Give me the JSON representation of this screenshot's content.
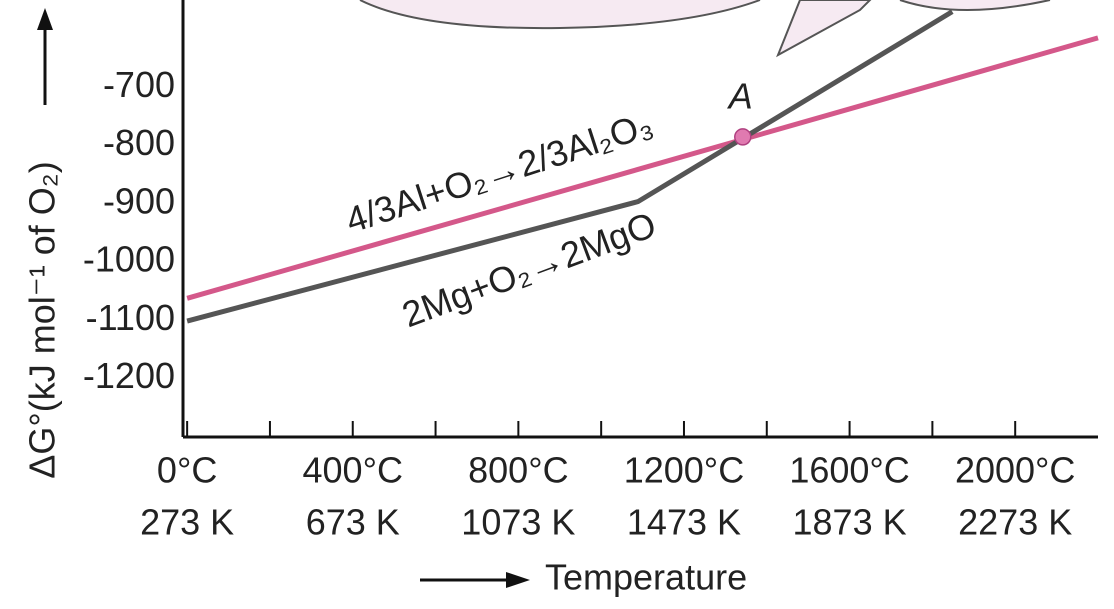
{
  "chart_data": {
    "type": "line",
    "xlabel": "Temperature",
    "ylabel": "ΔG°(kJ mol⁻¹ of O₂)",
    "xlim": [
      -10,
      2200
    ],
    "ylim": [
      -1300,
      -550
    ],
    "xticks": [
      {
        "value": 0,
        "label": "0°C"
      },
      {
        "value": 400,
        "label": "400°C"
      },
      {
        "value": 800,
        "label": "800°C"
      },
      {
        "value": 1200,
        "label": "1200°C"
      },
      {
        "value": 1600,
        "label": "1600°C"
      },
      {
        "value": 2000,
        "label": "2000°C"
      }
    ],
    "xtick_labels_kelvin": [
      "273 K",
      "673 K",
      "1073 K",
      "1473 K",
      "1873 K",
      "2273 K"
    ],
    "xminorticks": [
      200,
      600,
      1000,
      1400,
      1800
    ],
    "yticks": [
      -700,
      -800,
      -900,
      -1000,
      -1100,
      -1200
    ],
    "series": [
      {
        "name": "4/3Al+O₂→2/3Al₂O₃",
        "color": "#d4588a",
        "x": [
          0,
          2200
        ],
        "values": [
          -1062,
          -615
        ]
      },
      {
        "name": "2Mg+O₂→2MgO",
        "color": "#555555",
        "x": [
          0,
          1089,
          1848
        ],
        "values": [
          -1101,
          -896,
          -570
        ]
      }
    ],
    "points": [
      {
        "label": "A",
        "x": 1342,
        "value": -785,
        "color": "#e07ab0"
      }
    ]
  }
}
